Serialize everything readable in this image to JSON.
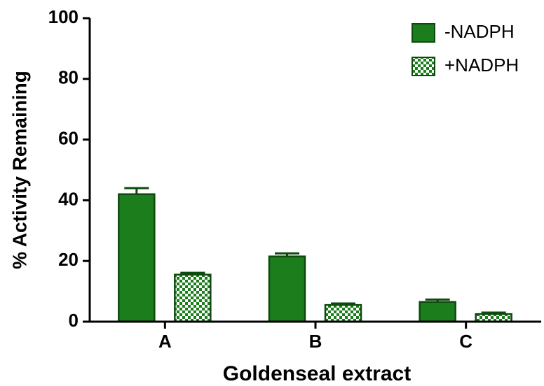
{
  "chart_data": {
    "type": "bar",
    "x_label": "Goldenseal extract",
    "y_label": "% Activity Remaining",
    "categories": [
      "A",
      "B",
      "C"
    ],
    "series": [
      {
        "name": "-NADPH",
        "color": "#1b7d1b",
        "pattern": "solid",
        "values": [
          42,
          21.5,
          6.5
        ],
        "errors": [
          2,
          1,
          0.8
        ]
      },
      {
        "name": "+NADPH",
        "color": "#1b7d1b",
        "pattern": "checker",
        "values": [
          15.5,
          5.5,
          2.5
        ],
        "errors": [
          0.6,
          0.5,
          0.5
        ]
      }
    ],
    "ylim": [
      0,
      100
    ],
    "yticks": [
      0,
      20,
      40,
      60,
      80,
      100
    ],
    "legend": "top-right"
  }
}
